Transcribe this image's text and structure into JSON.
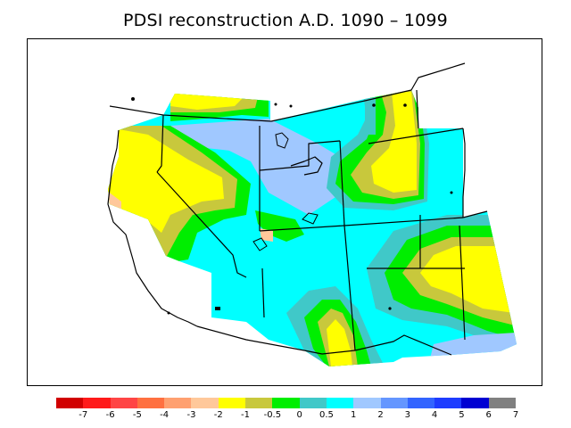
{
  "title": "PDSI reconstruction A.D. 1090 – 1099",
  "legend": {
    "colors": [
      "#d10000",
      "#ff1a1a",
      "#ff4545",
      "#ff7040",
      "#ffa070",
      "#ffc89a",
      "#ffff00",
      "#c8c83c",
      "#00ee00",
      "#40c8c8",
      "#00ffff",
      "#a0c8ff",
      "#6496ff",
      "#3264ff",
      "#1e3cff",
      "#0000d2",
      "#808080"
    ],
    "labels": [
      "-7",
      "-6",
      "-5",
      "-4",
      "-3",
      "-2",
      "-1",
      "-0.5",
      "0",
      "0.5",
      "1",
      "2",
      "3",
      "4",
      "5",
      "6",
      "7"
    ]
  }
}
